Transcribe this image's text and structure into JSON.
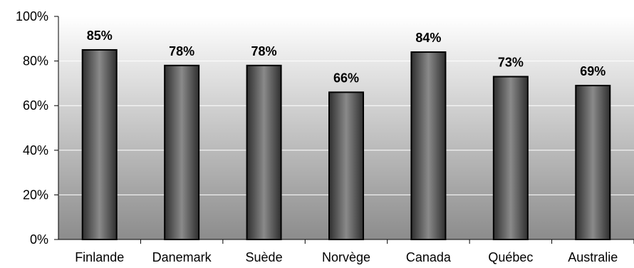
{
  "chart_data": {
    "type": "bar",
    "categories": [
      "Finlande",
      "Danemark",
      "Suède",
      "Norvège",
      "Canada",
      "Québec",
      "Australie"
    ],
    "values": [
      85,
      78,
      78,
      66,
      84,
      73,
      69
    ],
    "data_labels": [
      "85%",
      "78%",
      "78%",
      "66%",
      "84%",
      "73%",
      "69%"
    ],
    "ylim": [
      0,
      100
    ],
    "yticks": [
      0,
      20,
      40,
      60,
      80,
      100
    ],
    "ytick_labels": [
      "0%",
      "20%",
      "40%",
      "60%",
      "80%",
      "100%"
    ],
    "title": "",
    "xlabel": "",
    "ylabel": "",
    "grid": true,
    "legend": "none",
    "colors": {
      "bar_dark": "#2f2f2f",
      "bar_light": "#8a8a8a",
      "bar_stroke": "#000000",
      "plot_bg_top": "#ffffff",
      "plot_bg_bottom": "#8c8c8c",
      "gridline": "#ffffff",
      "axis": "#000000"
    }
  }
}
